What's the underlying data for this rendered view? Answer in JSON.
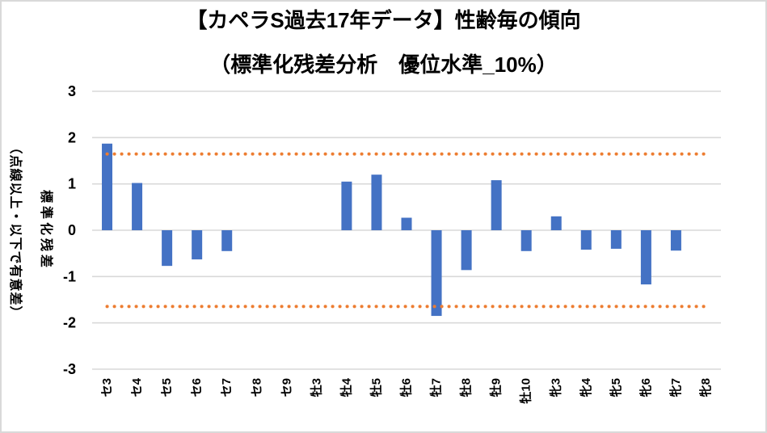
{
  "chart": {
    "title_line1": "【カペラS過去17年データ】性齢毎の傾向",
    "title_line2": "（標準化残差分析　優位水準_10%）",
    "y_axis_title_line1": "標準化残差",
    "y_axis_title_line2": "（点線以上・以下で有意差）",
    "colors": {
      "bar": "#4472C4",
      "threshold": "#ED7D31",
      "gridline": "#D9D9D9",
      "text": "#000000",
      "frame_border": "#D9D9D9"
    }
  },
  "chart_data": {
    "type": "bar",
    "title": "【カペラS過去17年データ】性齢毎の傾向（標準化残差分析　優位水準_10%）",
    "ylabel": "標準化残差（点線以上・以下で有意差）",
    "xlabel": "",
    "categories": [
      "セ3",
      "セ4",
      "セ5",
      "セ6",
      "セ7",
      "セ8",
      "セ9",
      "牡3",
      "牡4",
      "牡5",
      "牡6",
      "牡7",
      "牡8",
      "牡9",
      "牡10",
      "牝3",
      "牝4",
      "牝5",
      "牝6",
      "牝7",
      "牝8"
    ],
    "values": [
      1.87,
      1.02,
      -0.77,
      -0.63,
      -0.45,
      0,
      0,
      0,
      1.05,
      1.2,
      0.27,
      -1.85,
      -0.86,
      1.08,
      -0.45,
      0.3,
      -0.42,
      -0.4,
      -1.17,
      -0.44,
      0
    ],
    "y_ticks": [
      3,
      2,
      1,
      0,
      -1,
      -2,
      -3
    ],
    "ylim": [
      -3,
      3
    ],
    "threshold_lines": [
      1.645,
      -1.645
    ],
    "significance_level": "10%",
    "grid": true,
    "legend": false
  }
}
